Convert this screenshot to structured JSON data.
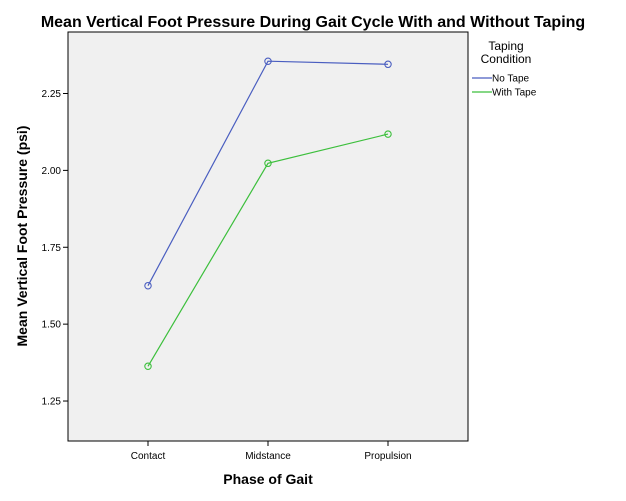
{
  "chart_data": {
    "type": "line",
    "title": "Mean Vertical Foot Pressure During Gait Cycle With and Without Taping",
    "xlabel": "Phase of Gait",
    "ylabel": "Mean Vertical Foot Pressure (psi)",
    "categories": [
      "Contact",
      "Midstance",
      "Propulsion"
    ],
    "ylim": [
      1.12,
      2.45
    ],
    "yticks": [
      1.25,
      1.5,
      1.75,
      2.0,
      2.25
    ],
    "ytick_labels": [
      "1.25",
      "1.50",
      "1.75",
      "2.00",
      "2.25"
    ],
    "grid": false,
    "legend": {
      "title_line1": "Taping",
      "title_line2": "Condition",
      "placement": "right"
    },
    "series": [
      {
        "name": "No Tape",
        "color": "#4a5ec0",
        "values": [
          1.625,
          2.355,
          2.345
        ]
      },
      {
        "name": "With Tape",
        "color": "#3cbf3c",
        "values": [
          1.363,
          2.023,
          2.118
        ]
      }
    ]
  },
  "colors": {
    "plot_background": "#f0f0f0",
    "axis": "#000000"
  }
}
